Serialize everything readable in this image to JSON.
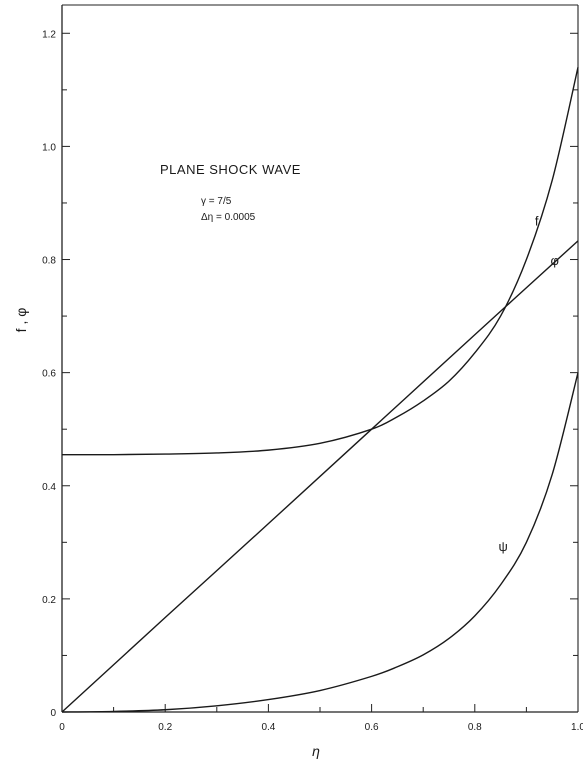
{
  "chart_data": {
    "type": "line",
    "title": "PLANE SHOCK WAVE",
    "annotations": [
      "γ = 7/5",
      "Δη = 0.0005"
    ],
    "xlabel": "η",
    "ylabel": "f , φ",
    "xlim": [
      0,
      1.0
    ],
    "ylim": [
      0,
      1.25
    ],
    "x_ticks": [
      0,
      0.2,
      0.4,
      0.6,
      0.8,
      1.0
    ],
    "x_tick_labels": [
      "0",
      "0.2",
      "0.4",
      "0.6",
      "0.8",
      "1.0"
    ],
    "y_ticks": [
      0,
      0.2,
      0.4,
      0.6,
      0.8,
      1.0,
      1.2
    ],
    "y_tick_labels": [
      "0",
      "0.2",
      "0.4",
      "0.6",
      "0.8",
      "1.0",
      "1.2"
    ],
    "grid": false,
    "legend": "none",
    "series": [
      {
        "name": "f",
        "label_at": [
          0.92,
          0.86
        ],
        "x": [
          0,
          0.1,
          0.2,
          0.3,
          0.4,
          0.5,
          0.6,
          0.65,
          0.7,
          0.75,
          0.8,
          0.85,
          0.9,
          0.95,
          1.0
        ],
        "y": [
          0.455,
          0.455,
          0.456,
          0.458,
          0.463,
          0.475,
          0.5,
          0.522,
          0.55,
          0.585,
          0.635,
          0.7,
          0.8,
          0.94,
          1.14
        ]
      },
      {
        "name": "φ",
        "label_at": [
          0.955,
          0.79
        ],
        "x": [
          0,
          0.2,
          0.4,
          0.6,
          0.8,
          1.0
        ],
        "y": [
          0,
          0.167,
          0.333,
          0.5,
          0.667,
          0.833
        ]
      },
      {
        "name": "ψ",
        "label_at": [
          0.855,
          0.285
        ],
        "x": [
          0,
          0.1,
          0.2,
          0.3,
          0.4,
          0.5,
          0.6,
          0.65,
          0.7,
          0.75,
          0.8,
          0.85,
          0.9,
          0.95,
          1.0
        ],
        "y": [
          0,
          0.001,
          0.004,
          0.011,
          0.022,
          0.038,
          0.063,
          0.08,
          0.101,
          0.13,
          0.17,
          0.225,
          0.3,
          0.42,
          0.6
        ]
      }
    ]
  }
}
